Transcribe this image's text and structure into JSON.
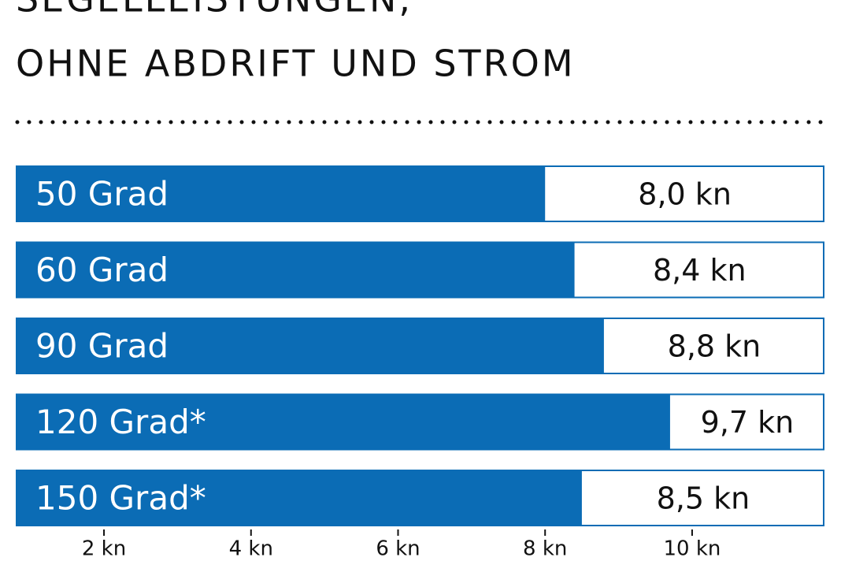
{
  "chart_data": {
    "type": "barh",
    "title": "SEGELLEISTUNGEN,",
    "subtitle": "OHNE ABDRIFT UND STROM",
    "categories": [
      "50 Grad",
      "60 Grad",
      "90 Grad",
      "120 Grad*",
      "150 Grad*"
    ],
    "values": [
      8.0,
      8.4,
      8.8,
      9.7,
      8.5
    ],
    "value_labels": [
      "8,0 kn",
      "8,4 kn",
      "8,8 kn",
      "9,7 kn",
      "8,5 kn"
    ],
    "color": "#0b6cb5",
    "xlim": [
      0.8,
      11.8
    ],
    "xticks": [
      {
        "value": 2,
        "label": "2 kn"
      },
      {
        "value": 4,
        "label": "4 kn"
      },
      {
        "value": 6,
        "label": "6 kn"
      },
      {
        "value": 8,
        "label": "8 kn"
      },
      {
        "value": 10,
        "label": "10 kn"
      }
    ]
  }
}
